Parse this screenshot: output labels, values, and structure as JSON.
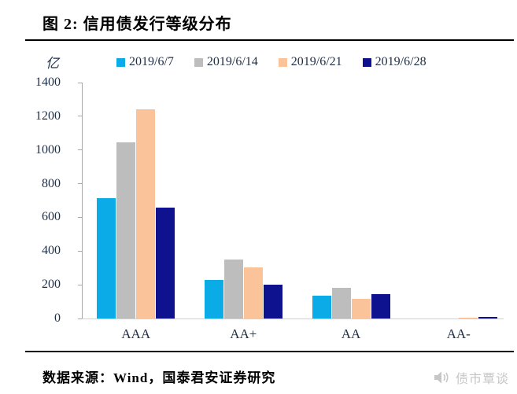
{
  "title": "图 2: 信用债发行等级分布",
  "unit_label": "亿",
  "source_note": "数据来源：Wind，国泰君安证券研究",
  "watermark": {
    "icon": "speaker-icon",
    "label": "债市覃谈"
  },
  "colors": {
    "series_2019_6_7": "#0aabe6",
    "series_2019_6_14": "#bdbdbd",
    "series_2019_6_21": "#fbc399",
    "series_2019_6_28": "#0e128f",
    "axis_text": "#203048",
    "axis_line": "#a8a8a8",
    "baseline": "#d0d0d0",
    "title_text": "#000000",
    "watermark_gray": "#c6c6c6"
  },
  "chart_data": {
    "type": "bar",
    "title": "图 2: 信用债发行等级分布",
    "xlabel": "",
    "ylabel": "亿",
    "ylim": [
      0,
      1400
    ],
    "ytick_step": 200,
    "grid": false,
    "legend_position": "top",
    "categories": [
      "AAA",
      "AA+",
      "AA",
      "AA-"
    ],
    "series": [
      {
        "name": "2019/6/7",
        "color": "#0aabe6",
        "values": [
          715,
          230,
          135,
          0
        ]
      },
      {
        "name": "2019/6/14",
        "color": "#bdbdbd",
        "values": [
          1045,
          350,
          180,
          0
        ]
      },
      {
        "name": "2019/6/21",
        "color": "#fbc399",
        "values": [
          1240,
          305,
          115,
          3
        ]
      },
      {
        "name": "2019/6/28",
        "color": "#0e128f",
        "values": [
          660,
          200,
          145,
          8
        ]
      }
    ]
  }
}
